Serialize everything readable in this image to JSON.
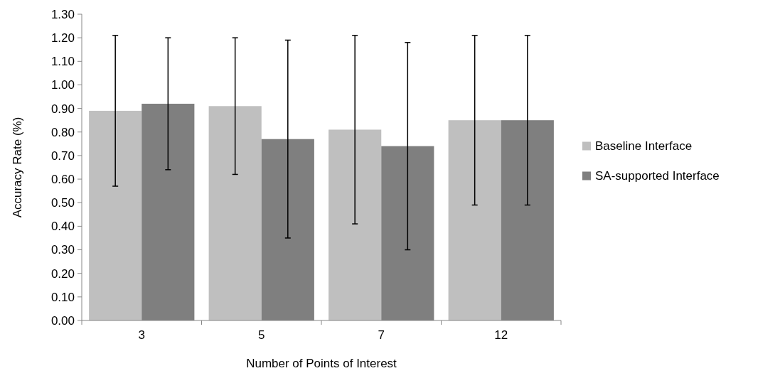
{
  "chart_data": {
    "type": "bar",
    "xlabel": "Number of Points of Interest",
    "ylabel": "Accuracy Rate (%)",
    "categories": [
      "3",
      "5",
      "7",
      "12"
    ],
    "series": [
      {
        "name": "Baseline Interface",
        "color": "#bfbfbf",
        "values": [
          0.89,
          0.91,
          0.81,
          0.85
        ],
        "errors": [
          0.32,
          0.29,
          0.4,
          0.36
        ]
      },
      {
        "name": "SA-supported Interface",
        "color": "#7f7f7f",
        "values": [
          0.92,
          0.77,
          0.74,
          0.85
        ],
        "errors": [
          0.28,
          0.42,
          0.44,
          0.36
        ]
      }
    ],
    "ylim": [
      0,
      1.3
    ],
    "yticks": [
      {
        "value": 0,
        "label": "0.00"
      },
      {
        "value": 0.1,
        "label": "0.10"
      },
      {
        "value": 0.2,
        "label": "0.20"
      },
      {
        "value": 0.3,
        "label": "0.30"
      },
      {
        "value": 0.4,
        "label": "0.40"
      },
      {
        "value": 0.5,
        "label": "0.50"
      },
      {
        "value": 0.6,
        "label": "0.60"
      },
      {
        "value": 0.7,
        "label": "0.70"
      },
      {
        "value": 0.8,
        "label": "0.80"
      },
      {
        "value": 0.9,
        "label": "0.90"
      },
      {
        "value": 1.0,
        "label": "1.00"
      },
      {
        "value": 1.1,
        "label": "1.10"
      },
      {
        "value": 1.2,
        "label": "1.20"
      },
      {
        "value": 1.3,
        "label": "1.30"
      }
    ],
    "grid": false,
    "legend": "right"
  }
}
